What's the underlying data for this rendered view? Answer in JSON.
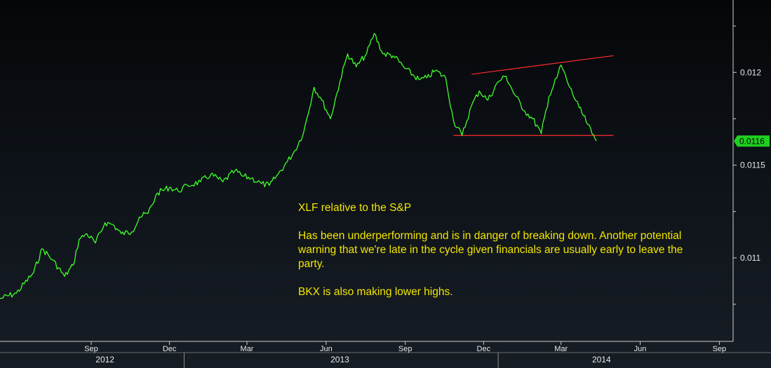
{
  "chart_data": {
    "type": "line",
    "series": [
      {
        "values_xy": [
          [
            "2012-06-01",
            0.01078
          ],
          [
            "2012-06-20",
            0.01081
          ],
          [
            "2012-07-10",
            0.01092
          ],
          [
            "2012-07-20",
            0.01105
          ],
          [
            "2012-08-01",
            0.01099
          ],
          [
            "2012-08-15",
            0.0109
          ],
          [
            "2012-08-25",
            0.01096
          ],
          [
            "2012-09-01",
            0.0111
          ],
          [
            "2012-09-10",
            0.01113
          ],
          [
            "2012-09-20",
            0.01108
          ],
          [
            "2012-10-01",
            0.01119
          ],
          [
            "2012-10-10",
            0.01118
          ],
          [
            "2012-10-20",
            0.01113
          ],
          [
            "2012-11-01",
            0.01114
          ],
          [
            "2012-11-10",
            0.01122
          ],
          [
            "2012-11-20",
            0.01124
          ],
          [
            "2012-12-01",
            0.01135
          ],
          [
            "2012-12-15",
            0.01138
          ],
          [
            "2012-12-25",
            0.01136
          ],
          [
            "2013-01-05",
            0.01139
          ],
          [
            "2013-01-20",
            0.01141
          ],
          [
            "2013-02-01",
            0.01145
          ],
          [
            "2013-02-15",
            0.01141
          ],
          [
            "2013-03-01",
            0.01147
          ],
          [
            "2013-03-10",
            0.01144
          ],
          [
            "2013-03-20",
            0.01143
          ],
          [
            "2013-04-01",
            0.0114
          ],
          [
            "2013-04-10",
            0.01139
          ],
          [
            "2013-04-20",
            0.01145
          ],
          [
            "2013-05-01",
            0.01152
          ],
          [
            "2013-05-10",
            0.01158
          ],
          [
            "2013-05-20",
            0.01168
          ],
          [
            "2013-06-01",
            0.01192
          ],
          [
            "2013-06-10",
            0.01185
          ],
          [
            "2013-06-20",
            0.01175
          ],
          [
            "2013-07-01",
            0.01195
          ],
          [
            "2013-07-10",
            0.0121
          ],
          [
            "2013-07-20",
            0.01203
          ],
          [
            "2013-08-01",
            0.0121
          ],
          [
            "2013-08-10",
            0.01221
          ],
          [
            "2013-08-20",
            0.0121
          ],
          [
            "2013-09-01",
            0.01209
          ],
          [
            "2013-09-15",
            0.01202
          ],
          [
            "2013-10-01",
            0.01196
          ],
          [
            "2013-10-10",
            0.01197
          ],
          [
            "2013-10-20",
            0.01201
          ],
          [
            "2013-11-01",
            0.01197
          ],
          [
            "2013-11-10",
            0.01174
          ],
          [
            "2013-11-20",
            0.01166
          ],
          [
            "2013-12-01",
            0.01182
          ],
          [
            "2013-12-10",
            0.0119
          ],
          [
            "2013-12-20",
            0.01185
          ],
          [
            "2014-01-01",
            0.01195
          ],
          [
            "2014-01-10",
            0.01198
          ],
          [
            "2014-01-20",
            0.01188
          ],
          [
            "2014-02-01",
            0.01179
          ],
          [
            "2014-02-10",
            0.01175
          ],
          [
            "2014-02-20",
            0.01167
          ],
          [
            "2014-03-01",
            0.01187
          ],
          [
            "2014-03-10",
            0.01197
          ],
          [
            "2014-03-15",
            0.01204
          ],
          [
            "2014-03-25",
            0.01192
          ],
          [
            "2014-04-05",
            0.01181
          ],
          [
            "2014-04-15",
            0.01172
          ],
          [
            "2014-04-20",
            0.01167
          ],
          [
            "2014-04-25",
            0.01163
          ]
        ],
        "color": "#3fff2a"
      }
    ],
    "trendlines": [
      {
        "from": [
          "2013-12-01",
          0.01199
        ],
        "to": [
          "2014-05-15",
          0.01209
        ],
        "color": "#ff2b2b"
      },
      {
        "from": [
          "2013-11-10",
          0.01166
        ],
        "to": [
          "2014-05-15",
          0.01166
        ],
        "color": "#ff2b2b"
      }
    ],
    "xlim": [
      "2012-06-01",
      "2014-10-01"
    ],
    "ylim": [
      0.01055,
      0.01236
    ],
    "y_ticks": [
      "0.011",
      "0.0115",
      "0.012"
    ],
    "x_ticks": [
      {
        "label": "Sep",
        "date": "2012-09-15"
      },
      {
        "label": "Dec",
        "date": "2012-12-15"
      },
      {
        "label": "Mar",
        "date": "2013-03-15"
      },
      {
        "label": "Jun",
        "date": "2013-06-15"
      },
      {
        "label": "Sep",
        "date": "2013-09-15"
      },
      {
        "label": "Dec",
        "date": "2013-12-15"
      },
      {
        "label": "Mar",
        "date": "2014-03-15"
      },
      {
        "label": "Jun",
        "date": "2014-06-15"
      },
      {
        "label": "Sep",
        "date": "2014-09-15"
      }
    ],
    "years": [
      {
        "label": "2012",
        "date": "2012-10-01"
      },
      {
        "label": "2013",
        "date": "2013-07-01"
      },
      {
        "label": "2014",
        "date": "2014-05-01"
      }
    ],
    "last_value_label": "0.0116",
    "last_value": 0.01163,
    "grid": false,
    "background": "#0d1218",
    "text_color": "#e8e8e8",
    "annotation_color": "#f2e600",
    "last_value_bg": "#1fcf1f"
  },
  "annotation": {
    "title": "XLF relative to the S&P",
    "paragraph1": "Has been underperforming and is in danger of breaking down. Another potential warning that we're late in the cycle given financials are usually early to leave the party.",
    "paragraph2": "BKX is also making lower highs."
  }
}
